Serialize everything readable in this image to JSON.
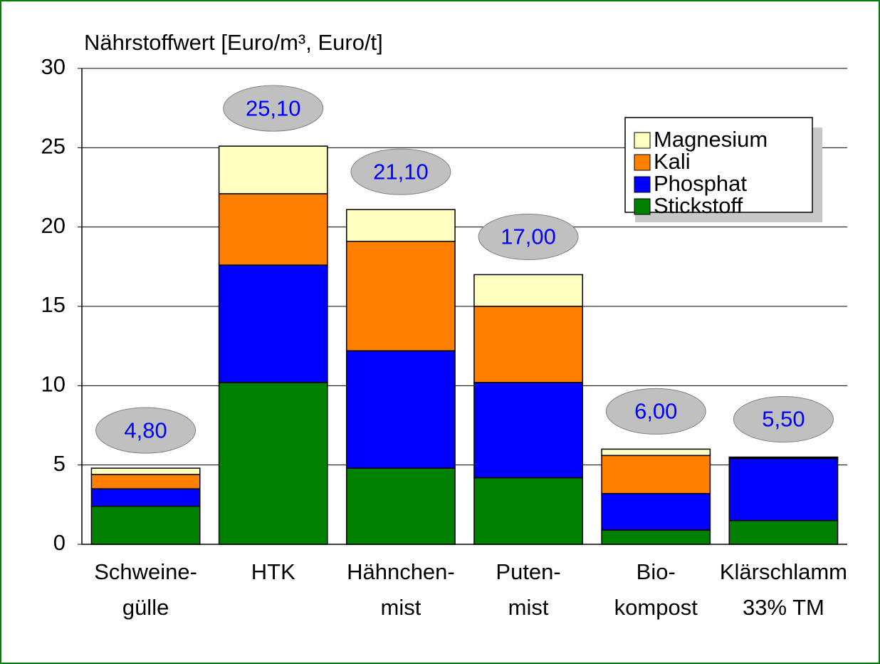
{
  "chart_data": {
    "type": "stacked_bar",
    "title": "Nährstoffwert [Euro/m³, Euro/t]",
    "categories": [
      [
        "Schweine-",
        "gülle"
      ],
      [
        "HTK"
      ],
      [
        "Hähnchen-",
        "mist"
      ],
      [
        "Puten-",
        "mist"
      ],
      [
        "Bio-",
        "kompost"
      ],
      [
        "Klärschlamm",
        "33% TM"
      ]
    ],
    "series": [
      {
        "name": "Stickstoff",
        "color": "#008000",
        "values": [
          2.4,
          10.2,
          4.8,
          4.2,
          0.9,
          1.5
        ]
      },
      {
        "name": "Phosphat",
        "color": "#0000ff",
        "values": [
          1.1,
          7.4,
          7.4,
          6.0,
          2.3,
          3.9
        ]
      },
      {
        "name": "Kali",
        "color": "#ff8000",
        "values": [
          0.9,
          4.5,
          6.9,
          4.8,
          2.4,
          0.05
        ]
      },
      {
        "name": "Magnesium",
        "color": "#ffffc0",
        "values": [
          0.4,
          3.0,
          2.0,
          2.0,
          0.4,
          0.05
        ]
      }
    ],
    "totals": [
      4.8,
      25.1,
      21.1,
      17.0,
      6.0,
      5.5
    ],
    "total_labels": [
      "4,80",
      "25,10",
      "21,10",
      "17,00",
      "6,00",
      "5,50"
    ],
    "ylim": [
      0,
      30
    ],
    "yticks": [
      0,
      5,
      10,
      15,
      20,
      25,
      30
    ],
    "grid": true,
    "legend": "upper right"
  }
}
